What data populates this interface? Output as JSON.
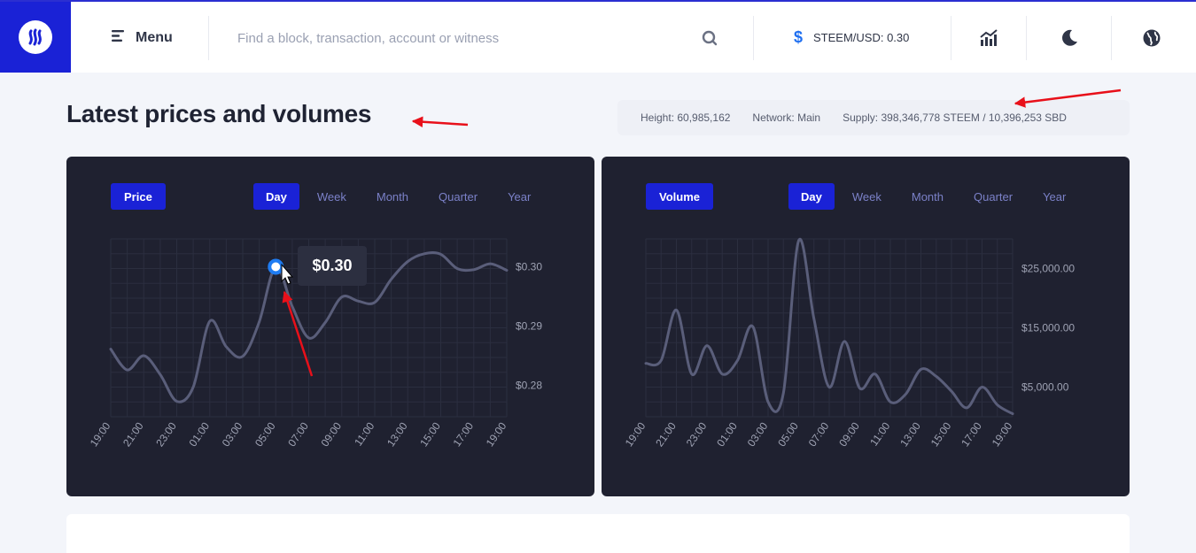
{
  "app": {
    "menu_label": "Menu",
    "search_placeholder": "Find a block, transaction, account or witness",
    "price_symbol": "$",
    "price_label": "STEEM/USD: 0.30",
    "accent_color": "#1a22d6"
  },
  "page": {
    "title": "Latest prices and volumes",
    "stats": {
      "height": "Height: 60,985,162",
      "network": "Network: Main",
      "supply": "Supply: 398,346,778 STEEM / 10,396,253 SBD"
    }
  },
  "price_panel": {
    "chip_label": "Price",
    "tabs": [
      "Day",
      "Week",
      "Month",
      "Quarter",
      "Year"
    ],
    "active_tab": "Day",
    "tooltip": "$0.30"
  },
  "volume_panel": {
    "chip_label": "Volume",
    "tabs": [
      "Day",
      "Week",
      "Month",
      "Quarter",
      "Year"
    ],
    "active_tab": "Day"
  },
  "icons": {
    "logo": "steem-logo-icon",
    "menu": "menu-icon",
    "search": "search-icon",
    "chart": "chart-icon",
    "theme": "moon-icon",
    "language": "globe-icon"
  },
  "chart_data": [
    {
      "type": "line",
      "title": "Price",
      "x": [
        "19:00",
        "21:00",
        "23:00",
        "01:00",
        "03:00",
        "05:00",
        "07:00",
        "09:00",
        "11:00",
        "13:00",
        "15:00",
        "17:00",
        "19:00"
      ],
      "y_tick_labels": [
        "$0.28",
        "$0.29",
        "$0.30"
      ],
      "y_ticks": [
        0.28,
        0.29,
        0.3
      ],
      "ylim": [
        0.2747,
        0.3047
      ],
      "points": [
        [
          0,
          0.2861
        ],
        [
          0.5,
          0.2826
        ],
        [
          1,
          0.285
        ],
        [
          1.5,
          0.2818
        ],
        [
          2,
          0.2773
        ],
        [
          2.5,
          0.2797
        ],
        [
          3,
          0.2908
        ],
        [
          3.5,
          0.2865
        ],
        [
          4,
          0.2849
        ],
        [
          4.5,
          0.2907
        ],
        [
          5,
          0.3
        ],
        [
          5.5,
          0.2933
        ],
        [
          6,
          0.288
        ],
        [
          6.5,
          0.2906
        ],
        [
          7,
          0.2949
        ],
        [
          7.5,
          0.2942
        ],
        [
          8,
          0.294
        ],
        [
          8.5,
          0.2979
        ],
        [
          9,
          0.3009
        ],
        [
          9.5,
          0.3022
        ],
        [
          10,
          0.3021
        ],
        [
          10.5,
          0.2997
        ],
        [
          11,
          0.2995
        ],
        [
          11.5,
          0.3005
        ],
        [
          12,
          0.2994
        ]
      ],
      "marker": {
        "x": 5,
        "y": 0.3,
        "label": "$0.30"
      },
      "grid": true,
      "legend": "none"
    },
    {
      "type": "line",
      "title": "Volume",
      "x": [
        "19:00",
        "21:00",
        "23:00",
        "01:00",
        "03:00",
        "05:00",
        "07:00",
        "09:00",
        "11:00",
        "13:00",
        "15:00",
        "17:00",
        "19:00"
      ],
      "y_tick_labels": [
        "$5,000.00",
        "$15,000.00",
        "$25,000.00"
      ],
      "y_ticks": [
        5000,
        15000,
        25000
      ],
      "ylim": [
        0,
        30000
      ],
      "points": [
        [
          0,
          9000
        ],
        [
          0.5,
          9500
        ],
        [
          1,
          18000
        ],
        [
          1.5,
          7200
        ],
        [
          2,
          12000
        ],
        [
          2.5,
          7200
        ],
        [
          3,
          9500
        ],
        [
          3.5,
          15200
        ],
        [
          4,
          2500
        ],
        [
          4.5,
          4000
        ],
        [
          5,
          29700
        ],
        [
          5.5,
          16500
        ],
        [
          6,
          5000
        ],
        [
          6.5,
          12700
        ],
        [
          7,
          4800
        ],
        [
          7.5,
          7200
        ],
        [
          8,
          2500
        ],
        [
          8.5,
          3800
        ],
        [
          9,
          8000
        ],
        [
          9.5,
          6800
        ],
        [
          10,
          4300
        ],
        [
          10.5,
          1500
        ],
        [
          11,
          5000
        ],
        [
          11.5,
          2000
        ],
        [
          12,
          500
        ]
      ],
      "grid": true,
      "legend": "none"
    }
  ]
}
